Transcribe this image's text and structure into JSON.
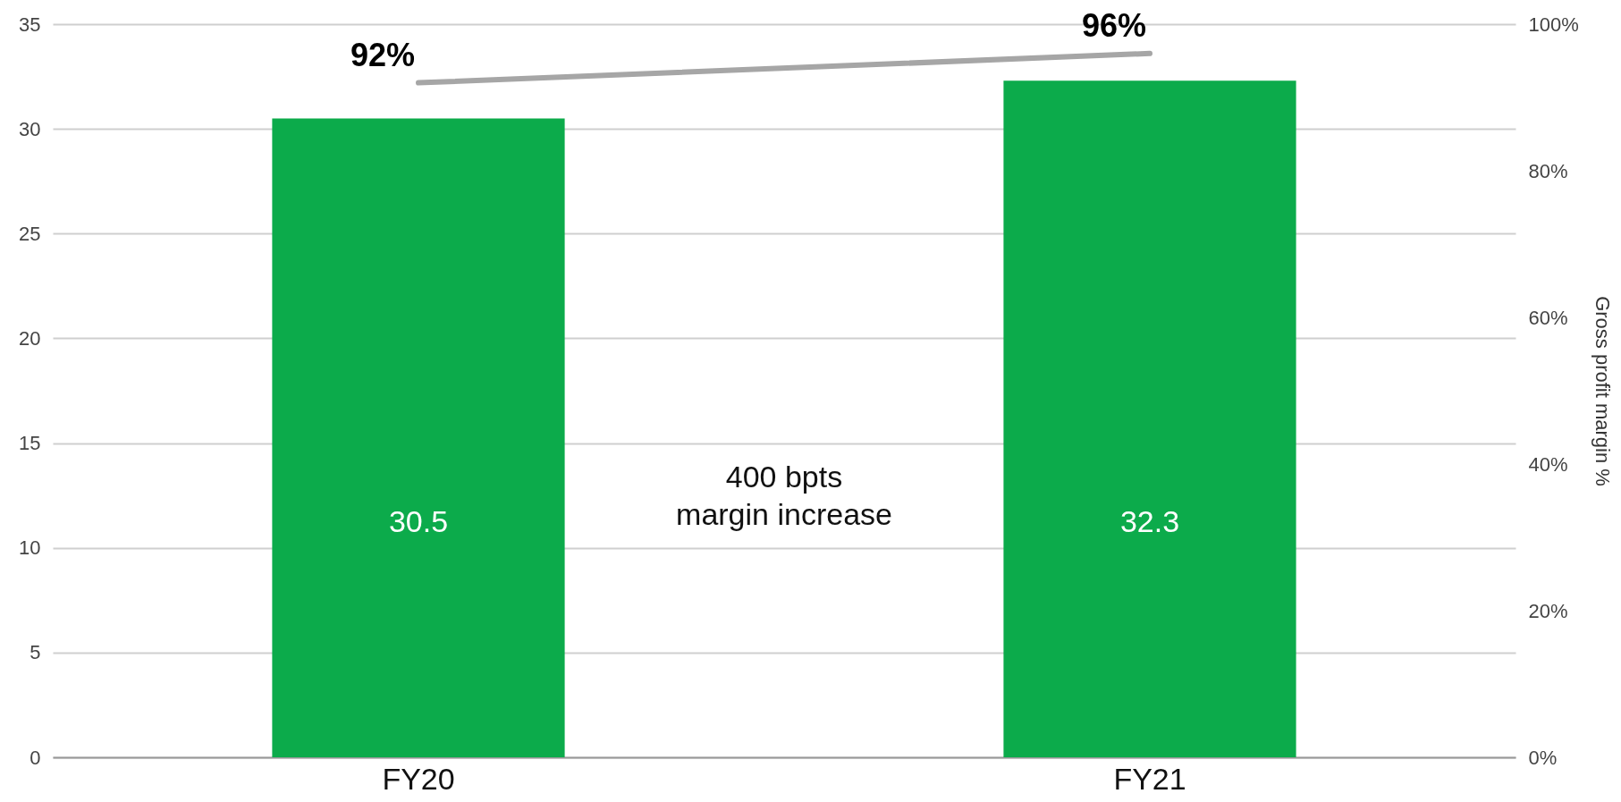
{
  "chart_data": {
    "type": "bar",
    "categories": [
      "FY20",
      "FY21"
    ],
    "series": [
      {
        "color": "#0cab4b",
        "values": [
          30.5,
          32.3
        ],
        "value_labels": [
          "30.5",
          "32.3"
        ]
      },
      {
        "type": "line",
        "axis": "y2",
        "color": "#a6a6a6",
        "values": [
          92,
          96
        ],
        "value_labels": [
          "92%",
          "96%"
        ]
      }
    ],
    "ylim": [
      0,
      35
    ],
    "yticks": [
      0,
      5,
      10,
      15,
      20,
      25,
      30,
      35
    ],
    "y2lim": [
      0,
      100
    ],
    "y2ticks": [
      {
        "value": 0,
        "label": "0%"
      },
      {
        "value": 20,
        "label": "20%"
      },
      {
        "value": 40,
        "label": "40%"
      },
      {
        "value": 60,
        "label": "60%"
      },
      {
        "value": 80,
        "label": "80%"
      },
      {
        "value": 100,
        "label": "100%"
      }
    ],
    "y2label": "Gross profit margin %",
    "grid": "y",
    "marker": "none",
    "line_style": "solid",
    "annotations": [
      "400 bpts margin increase"
    ]
  }
}
